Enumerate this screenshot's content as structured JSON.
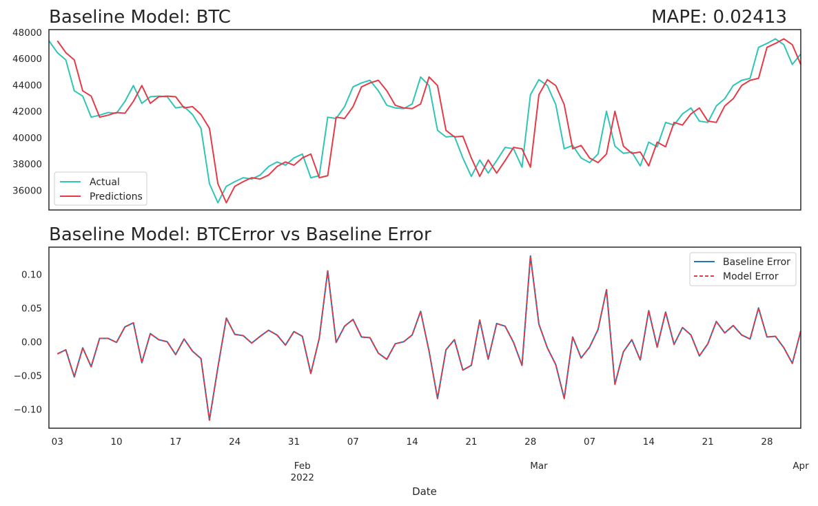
{
  "chart_data": [
    {
      "type": "line",
      "title": "Baseline Model: BTC",
      "annotation": "MAPE: 0.02413",
      "x": [
        "2022-01-02",
        "2022-01-03",
        "2022-01-04",
        "2022-01-05",
        "2022-01-06",
        "2022-01-07",
        "2022-01-08",
        "2022-01-09",
        "2022-01-10",
        "2022-01-11",
        "2022-01-12",
        "2022-01-13",
        "2022-01-14",
        "2022-01-15",
        "2022-01-16",
        "2022-01-17",
        "2022-01-18",
        "2022-01-19",
        "2022-01-20",
        "2022-01-21",
        "2022-01-22",
        "2022-01-23",
        "2022-01-24",
        "2022-01-25",
        "2022-01-26",
        "2022-01-27",
        "2022-01-28",
        "2022-01-29",
        "2022-01-30",
        "2022-01-31",
        "2022-02-01",
        "2022-02-02",
        "2022-02-03",
        "2022-02-04",
        "2022-02-05",
        "2022-02-06",
        "2022-02-07",
        "2022-02-08",
        "2022-02-09",
        "2022-02-10",
        "2022-02-11",
        "2022-02-12",
        "2022-02-13",
        "2022-02-14",
        "2022-02-15",
        "2022-02-16",
        "2022-02-17",
        "2022-02-18",
        "2022-02-19",
        "2022-02-20",
        "2022-02-21",
        "2022-02-22",
        "2022-02-23",
        "2022-02-24",
        "2022-02-25",
        "2022-02-26",
        "2022-02-27",
        "2022-02-28",
        "2022-03-01",
        "2022-03-02",
        "2022-03-03",
        "2022-03-04",
        "2022-03-05",
        "2022-03-06",
        "2022-03-07",
        "2022-03-08",
        "2022-03-09",
        "2022-03-10",
        "2022-03-11",
        "2022-03-12",
        "2022-03-13",
        "2022-03-14",
        "2022-03-15",
        "2022-03-16",
        "2022-03-17",
        "2022-03-18",
        "2022-03-19",
        "2022-03-20",
        "2022-03-21",
        "2022-03-22",
        "2022-03-23",
        "2022-03-24",
        "2022-03-25",
        "2022-03-26",
        "2022-03-27",
        "2022-03-28",
        "2022-03-29",
        "2022-03-30",
        "2022-03-31",
        "2022-04-01"
      ],
      "series": [
        {
          "name": "Actual",
          "color": "#2ec4b6",
          "values": [
            47350,
            46450,
            45900,
            43550,
            43150,
            41550,
            41700,
            41900,
            41850,
            42750,
            43950,
            42600,
            43100,
            43150,
            43100,
            42250,
            42350,
            41750,
            40700,
            36500,
            35050,
            36300,
            36650,
            36950,
            36850,
            37150,
            37800,
            38150,
            37900,
            38450,
            38750,
            36950,
            37100,
            41550,
            41450,
            42350,
            43850,
            44150,
            44350,
            43550,
            42450,
            42250,
            42200,
            42550,
            44600,
            43950,
            40550,
            40050,
            40100,
            38450,
            37050,
            38300,
            37300,
            38250,
            39250,
            39150,
            37750,
            43250,
            44400,
            43950,
            42500,
            39150,
            39400,
            38450,
            38100,
            38750,
            42000,
            39350,
            38800,
            38900,
            37850,
            39650,
            39300,
            41150,
            40950,
            41800,
            42250,
            41250,
            41150,
            42400,
            42950,
            43950,
            44350,
            44500,
            46850,
            47150,
            47500,
            47050,
            45550,
            46350
          ]
        },
        {
          "name": "Predictions",
          "color": "#e63946",
          "values": [
            null,
            47350,
            46450,
            45900,
            43550,
            43150,
            41550,
            41700,
            41900,
            41850,
            42750,
            43950,
            42600,
            43100,
            43150,
            43100,
            42250,
            42350,
            41750,
            40700,
            36500,
            35050,
            36300,
            36650,
            36950,
            36850,
            37150,
            37800,
            38150,
            37900,
            38450,
            38750,
            36950,
            37100,
            41550,
            41450,
            42350,
            43850,
            44150,
            44350,
            43550,
            42450,
            42250,
            42200,
            42550,
            44600,
            43950,
            40550,
            40050,
            40100,
            38450,
            37050,
            38300,
            37300,
            38250,
            39250,
            39150,
            37750,
            43250,
            44400,
            43950,
            42500,
            39150,
            39400,
            38450,
            38100,
            38750,
            42000,
            39350,
            38800,
            38900,
            37850,
            39650,
            39300,
            41150,
            40950,
            41800,
            42250,
            41250,
            41150,
            42400,
            42950,
            43950,
            44350,
            44500,
            46850,
            47150,
            47500,
            47050,
            45550
          ]
        }
      ],
      "yticks": [
        36000,
        38000,
        40000,
        42000,
        44000,
        46000,
        48000
      ],
      "ylim": [
        34500,
        48200
      ],
      "legend": {
        "placement": "lower left",
        "items": [
          "Actual",
          "Predictions"
        ]
      },
      "grid": false,
      "xlabel": "",
      "ylabel": ""
    },
    {
      "type": "line",
      "title": "Baseline Model: BTCError vs Baseline Error",
      "x": [
        "2022-01-03",
        "2022-01-04",
        "2022-01-05",
        "2022-01-06",
        "2022-01-07",
        "2022-01-08",
        "2022-01-09",
        "2022-01-10",
        "2022-01-11",
        "2022-01-12",
        "2022-01-13",
        "2022-01-14",
        "2022-01-15",
        "2022-01-16",
        "2022-01-17",
        "2022-01-18",
        "2022-01-19",
        "2022-01-20",
        "2022-01-21",
        "2022-01-22",
        "2022-01-23",
        "2022-01-24",
        "2022-01-25",
        "2022-01-26",
        "2022-01-27",
        "2022-01-28",
        "2022-01-29",
        "2022-01-30",
        "2022-01-31",
        "2022-02-01",
        "2022-02-02",
        "2022-02-03",
        "2022-02-04",
        "2022-02-05",
        "2022-02-06",
        "2022-02-07",
        "2022-02-08",
        "2022-02-09",
        "2022-02-10",
        "2022-02-11",
        "2022-02-12",
        "2022-02-13",
        "2022-02-14",
        "2022-02-15",
        "2022-02-16",
        "2022-02-17",
        "2022-02-18",
        "2022-02-19",
        "2022-02-20",
        "2022-02-21",
        "2022-02-22",
        "2022-02-23",
        "2022-02-24",
        "2022-02-25",
        "2022-02-26",
        "2022-02-27",
        "2022-02-28",
        "2022-03-01",
        "2022-03-02",
        "2022-03-03",
        "2022-03-04",
        "2022-03-05",
        "2022-03-06",
        "2022-03-07",
        "2022-03-08",
        "2022-03-09",
        "2022-03-10",
        "2022-03-11",
        "2022-03-12",
        "2022-03-13",
        "2022-03-14",
        "2022-03-15",
        "2022-03-16",
        "2022-03-17",
        "2022-03-18",
        "2022-03-19",
        "2022-03-20",
        "2022-03-21",
        "2022-03-22",
        "2022-03-23",
        "2022-03-24",
        "2022-03-25",
        "2022-03-26",
        "2022-03-27",
        "2022-03-28",
        "2022-03-29",
        "2022-03-30",
        "2022-03-31",
        "2022-04-01"
      ],
      "series": [
        {
          "name": "Baseline Error",
          "color": "#1f77b4",
          "dash": "solid",
          "values": [
            -0.018,
            -0.012,
            -0.052,
            -0.009,
            -0.037,
            0.005,
            0.005,
            -0.001,
            0.022,
            0.028,
            -0.031,
            0.012,
            0.003,
            0.0,
            -0.019,
            0.004,
            -0.014,
            -0.025,
            -0.116,
            -0.038,
            0.035,
            0.011,
            0.009,
            -0.002,
            0.008,
            0.017,
            0.01,
            -0.005,
            0.015,
            0.008,
            -0.047,
            0.005,
            0.105,
            -0.001,
            0.023,
            0.033,
            0.007,
            0.006,
            -0.017,
            -0.026,
            -0.003,
            0.0,
            0.01,
            0.045,
            -0.014,
            -0.084,
            -0.012,
            0.003,
            -0.042,
            -0.035,
            0.032,
            -0.026,
            0.027,
            0.023,
            -0.001,
            -0.035,
            0.127,
            0.026,
            -0.009,
            -0.034,
            -0.084,
            0.007,
            -0.024,
            -0.008,
            0.018,
            0.077,
            -0.063,
            -0.015,
            0.003,
            -0.027,
            0.046,
            -0.008,
            0.044,
            -0.004,
            0.021,
            0.01,
            -0.021,
            -0.003,
            0.03,
            0.013,
            0.024,
            0.01,
            0.004,
            0.05,
            0.007,
            0.008,
            -0.009,
            -0.032,
            0.016
          ]
        },
        {
          "name": "Model Error",
          "color": "#e63946",
          "dash": "dashed",
          "values": [
            -0.018,
            -0.012,
            -0.052,
            -0.009,
            -0.037,
            0.005,
            0.005,
            -0.001,
            0.022,
            0.028,
            -0.031,
            0.012,
            0.003,
            0.0,
            -0.019,
            0.004,
            -0.014,
            -0.025,
            -0.116,
            -0.038,
            0.035,
            0.011,
            0.009,
            -0.002,
            0.008,
            0.017,
            0.01,
            -0.005,
            0.015,
            0.008,
            -0.047,
            0.005,
            0.105,
            -0.001,
            0.023,
            0.033,
            0.007,
            0.006,
            -0.017,
            -0.026,
            -0.003,
            0.0,
            0.01,
            0.045,
            -0.014,
            -0.084,
            -0.012,
            0.003,
            -0.042,
            -0.035,
            0.032,
            -0.026,
            0.027,
            0.023,
            -0.001,
            -0.035,
            0.127,
            0.026,
            -0.009,
            -0.034,
            -0.084,
            0.007,
            -0.024,
            -0.008,
            0.018,
            0.077,
            -0.063,
            -0.015,
            0.003,
            -0.027,
            0.046,
            -0.008,
            0.044,
            -0.004,
            0.021,
            0.01,
            -0.021,
            -0.003,
            0.03,
            0.013,
            0.024,
            0.01,
            0.004,
            0.05,
            0.007,
            0.008,
            -0.009,
            -0.032,
            0.016
          ]
        }
      ],
      "yticks": [
        -0.1,
        -0.05,
        0.0,
        0.05,
        0.1
      ],
      "ytick_labels": [
        "−0.10",
        "−0.05",
        "0.00",
        "0.05",
        "0.10"
      ],
      "ylim": [
        -0.128,
        0.14
      ],
      "legend": {
        "placement": "top-right",
        "items": [
          "Baseline Error",
          "Model Error"
        ]
      },
      "grid": false,
      "xlabel": "Date",
      "ylabel": "",
      "xtick_labels": [
        {
          "date": "2022-01-03",
          "label": "03"
        },
        {
          "date": "2022-01-10",
          "label": "10"
        },
        {
          "date": "2022-01-17",
          "label": "17"
        },
        {
          "date": "2022-01-24",
          "label": "24"
        },
        {
          "date": "2022-01-31",
          "label": "31"
        },
        {
          "date": "2022-02-01",
          "label": "Feb\n2022"
        },
        {
          "date": "2022-02-07",
          "label": "07"
        },
        {
          "date": "2022-02-14",
          "label": "14"
        },
        {
          "date": "2022-02-21",
          "label": "21"
        },
        {
          "date": "2022-02-28",
          "label": "28"
        },
        {
          "date": "2022-03-01",
          "label": "Mar"
        },
        {
          "date": "2022-03-07",
          "label": "07"
        },
        {
          "date": "2022-03-14",
          "label": "14"
        },
        {
          "date": "2022-03-21",
          "label": "21"
        },
        {
          "date": "2022-03-28",
          "label": "28"
        },
        {
          "date": "2022-04-01",
          "label": "Apr"
        }
      ]
    }
  ]
}
